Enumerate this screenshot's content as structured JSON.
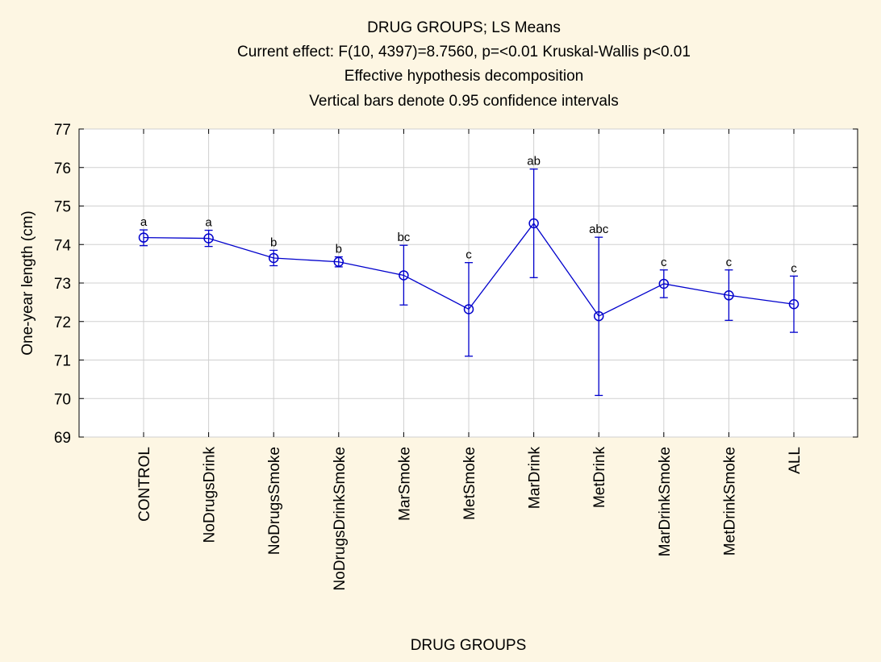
{
  "chart_data": {
    "type": "line",
    "title_lines": [
      "DRUG GROUPS; LS Means",
      "Current effect: F(10, 4397)=8.7560, p=<0.01 Kruskal-Wallis p<0.01",
      "Effective hypothesis decomposition",
      "Vertical bars denote 0.95 confidence intervals"
    ],
    "xlabel": "DRUG GROUPS",
    "ylabel": "One-year length (cm)",
    "ylim": [
      69,
      77
    ],
    "yticks": [
      69,
      70,
      71,
      72,
      73,
      74,
      75,
      76,
      77
    ],
    "grid": true,
    "series_color": "#0000cc",
    "categories": [
      "CONTROL",
      "NoDrugsDrink",
      "NoDrugsSmoke",
      "NoDrugsDrinkSmoke",
      "MarSmoke",
      "MetSmoke",
      "MarDrink",
      "MetDrink",
      "MarDrinkSmoke",
      "MetDrinkSmoke",
      "ALL"
    ],
    "values": [
      74.18,
      74.16,
      73.65,
      73.55,
      73.2,
      72.32,
      74.55,
      72.14,
      72.98,
      72.68,
      72.45
    ],
    "ci_lower": [
      73.97,
      73.95,
      73.45,
      73.42,
      72.43,
      71.1,
      73.14,
      70.08,
      72.62,
      72.03,
      71.72
    ],
    "ci_upper": [
      74.38,
      74.37,
      73.85,
      73.68,
      73.98,
      73.53,
      75.96,
      74.19,
      73.34,
      73.34,
      73.18
    ],
    "group_labels": [
      "a",
      "a",
      "b",
      "b",
      "bc",
      "c",
      "ab",
      "abc",
      "c",
      "c",
      "c"
    ]
  }
}
